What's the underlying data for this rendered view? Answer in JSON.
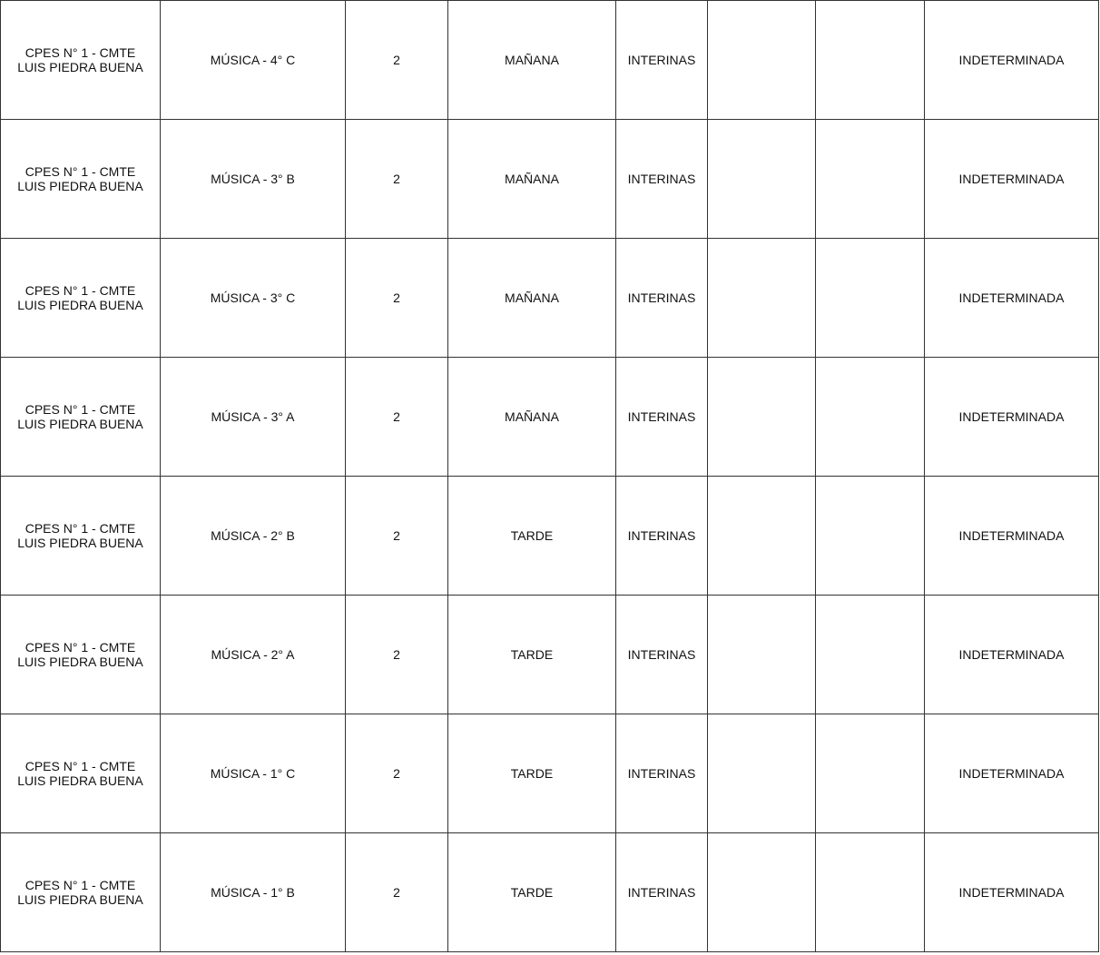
{
  "table": {
    "rows": [
      [
        "CPES N° 1 - CMTE LUIS PIEDRA BUENA",
        "MÚSICA - 4° C",
        "2",
        "MAÑANA",
        "INTERINAS",
        "",
        "",
        "INDETERMINADA"
      ],
      [
        "CPES N° 1 - CMTE LUIS PIEDRA BUENA",
        "MÚSICA - 3° B",
        "2",
        "MAÑANA",
        "INTERINAS",
        "",
        "",
        "INDETERMINADA"
      ],
      [
        "CPES N° 1 - CMTE LUIS PIEDRA BUENA",
        "MÚSICA - 3° C",
        "2",
        "MAÑANA",
        "INTERINAS",
        "",
        "",
        "INDETERMINADA"
      ],
      [
        "CPES N° 1 - CMTE LUIS PIEDRA BUENA",
        "MÚSICA - 3° A",
        "2",
        "MAÑANA",
        "INTERINAS",
        "",
        "",
        "INDETERMINADA"
      ],
      [
        "CPES N° 1 - CMTE LUIS PIEDRA BUENA",
        "MÚSICA - 2° B",
        "2",
        "TARDE",
        "INTERINAS",
        "",
        "",
        "INDETERMINADA"
      ],
      [
        "CPES N° 1 - CMTE LUIS PIEDRA BUENA",
        "MÚSICA - 2° A",
        "2",
        "TARDE",
        "INTERINAS",
        "",
        "",
        "INDETERMINADA"
      ],
      [
        "CPES N° 1 - CMTE LUIS PIEDRA BUENA",
        "MÚSICA - 1° C",
        "2",
        "TARDE",
        "INTERINAS",
        "",
        "",
        "INDETERMINADA"
      ],
      [
        "CPES N° 1 - CMTE LUIS PIEDRA BUENA",
        "MÚSICA - 1° B",
        "2",
        "TARDE",
        "INTERINAS",
        "",
        "",
        "INDETERMINADA"
      ]
    ]
  }
}
